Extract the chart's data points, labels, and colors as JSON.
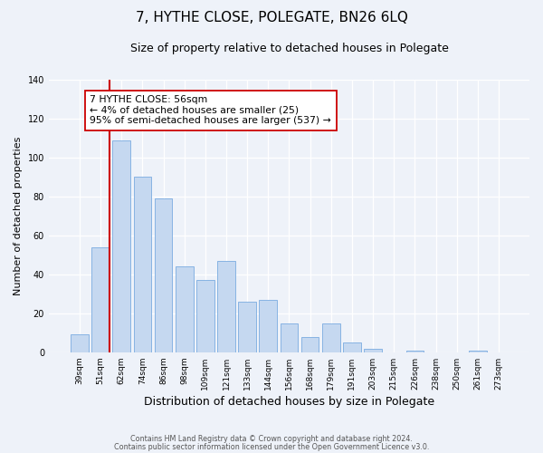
{
  "title": "7, HYTHE CLOSE, POLEGATE, BN26 6LQ",
  "subtitle": "Size of property relative to detached houses in Polegate",
  "xlabel": "Distribution of detached houses by size in Polegate",
  "ylabel": "Number of detached properties",
  "bar_labels": [
    "39sqm",
    "51sqm",
    "62sqm",
    "74sqm",
    "86sqm",
    "98sqm",
    "109sqm",
    "121sqm",
    "133sqm",
    "144sqm",
    "156sqm",
    "168sqm",
    "179sqm",
    "191sqm",
    "203sqm",
    "215sqm",
    "226sqm",
    "238sqm",
    "250sqm",
    "261sqm",
    "273sqm"
  ],
  "bar_values": [
    9,
    54,
    109,
    90,
    79,
    44,
    37,
    47,
    26,
    27,
    15,
    8,
    15,
    5,
    2,
    0,
    1,
    0,
    0,
    1,
    0
  ],
  "bar_color": "#c5d8f0",
  "bar_edge_color": "#7aabe0",
  "vline_color": "#cc0000",
  "annotation_text": "7 HYTHE CLOSE: 56sqm\n← 4% of detached houses are smaller (25)\n95% of semi-detached houses are larger (537) →",
  "annotation_box_color": "#ffffff",
  "annotation_box_edge": "#cc0000",
  "ylim": [
    0,
    140
  ],
  "yticks": [
    0,
    20,
    40,
    60,
    80,
    100,
    120,
    140
  ],
  "footnote1": "Contains HM Land Registry data © Crown copyright and database right 2024.",
  "footnote2": "Contains public sector information licensed under the Open Government Licence v3.0.",
  "bg_color": "#eef2f9",
  "plot_bg_color": "#eef2f9",
  "grid_color": "#ffffff",
  "title_fontsize": 11,
  "subtitle_fontsize": 9,
  "ylabel_fontsize": 8,
  "xlabel_fontsize": 9
}
